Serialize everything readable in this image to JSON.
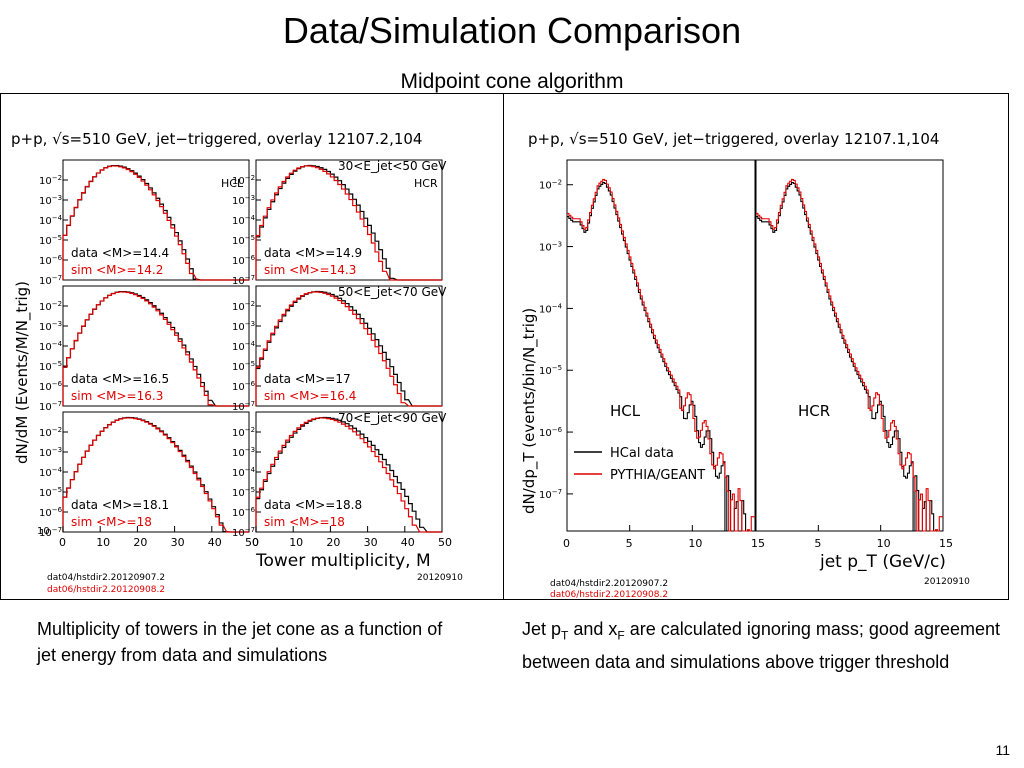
{
  "slide": {
    "title": "Data/Simulation Comparison",
    "subtitle": "Midpoint cone algorithm",
    "caption_left": "Multiplicity of towers in the jet cone as a function of jet energy from data and simulations",
    "caption_right_parts": [
      "Jet p",
      "T",
      " and x",
      "F",
      " are calculated ignoring mass; good agreement between data and simulations above trigger threshold"
    ],
    "page_number": "11"
  },
  "colors": {
    "data": "#000000",
    "sim": "#e00000"
  },
  "chart_data": [
    {
      "type": "line",
      "title": "p+p, √s=510 GeV, jet−triggered, overlay 12107.2,104",
      "xlabel": "Tower multiplicity, M",
      "ylabel": "dN/dM (Events/M/N_trig)",
      "xlim": [
        0,
        50
      ],
      "yscale": "log",
      "ylim_exponents": [
        -7,
        -1
      ],
      "x_ticks": [
        "0",
        "10",
        "20",
        "30",
        "40",
        "50"
      ],
      "y_ticks": [
        "10−2",
        "10−3",
        "10−4",
        "10−5",
        "10−6",
        "10−7"
      ],
      "bottom_tick": "10",
      "series_names": [
        "data",
        "sim"
      ],
      "subplots": [
        {
          "column": "HCL",
          "row_label": "",
          "data_mean": "data <M>=14.4",
          "sim_mean": "sim <M>=14.2",
          "mean_data": 14.4,
          "mean_sim": 14.2
        },
        {
          "column": "HCR",
          "row_label": "30<E_jet<50 GeV",
          "data_mean": "data <M>=14.9",
          "sim_mean": "sim <M>=14.3",
          "mean_data": 14.9,
          "mean_sim": 14.3
        },
        {
          "column": "",
          "row_label": "",
          "data_mean": "data <M>=16.5",
          "sim_mean": "sim <M>=16.3",
          "mean_data": 16.5,
          "mean_sim": 16.3
        },
        {
          "column": "",
          "row_label": "50<E_jet<70 GeV",
          "data_mean": "data <M>=17",
          "sim_mean": "sim <M>=16.4",
          "mean_data": 17,
          "mean_sim": 16.4
        },
        {
          "column": "",
          "row_label": "",
          "data_mean": "data <M>=18.1",
          "sim_mean": "sim <M>=18",
          "mean_data": 18.1,
          "mean_sim": 18
        },
        {
          "column": "",
          "row_label": "70<E_jet<90 GeV",
          "data_mean": "data <M>=18.8",
          "sim_mean": "sim <M>=18",
          "mean_data": 18.8,
          "mean_sim": 18
        }
      ],
      "footer": {
        "file_data": "dat04/hstdir2.20120907.2",
        "file_sim": "dat06/hstdir2.20120908.2",
        "date": "20120910"
      }
    },
    {
      "type": "line",
      "title": "p+p, √s=510 GeV, jet−triggered, overlay 12107.1,104",
      "xlabel": "jet p_T (GeV/c)",
      "ylabel": "dN/dp_T (events/bin/N_trig)",
      "xlim": [
        0,
        15
      ],
      "yscale": "log",
      "ylim_exponents": [
        -7.6,
        -1.6
      ],
      "x_ticks": [
        "0",
        "5",
        "10",
        "15"
      ],
      "y_ticks": [
        "10−2",
        "10−3",
        "10−4",
        "10−5",
        "10−6",
        "10−7"
      ],
      "panels": [
        "HCL",
        "HCR"
      ],
      "legend": [
        {
          "label": "HCal data",
          "color": "#000000"
        },
        {
          "label": "PYTHIA/GEANT",
          "color": "#e00000"
        }
      ],
      "approx_curve": {
        "x": [
          0,
          0.5,
          1,
          1.5,
          2,
          2.5,
          3,
          3.5,
          4,
          5,
          6,
          7,
          8,
          9,
          10,
          11,
          12,
          13,
          14,
          15
        ],
        "log10_y": [
          -2.5,
          -2.6,
          -2.6,
          -2.8,
          -2.4,
          -2.05,
          -1.95,
          -2.15,
          -2.5,
          -3.2,
          -3.9,
          -4.5,
          -5.0,
          -5.4,
          -5.75,
          -6.1,
          -6.5,
          -6.9,
          -7.3,
          -7.7
        ]
      },
      "footer": {
        "file_data": "dat04/hstdir2.20120907.2",
        "file_sim": "dat06/hstdir2.20120908.2",
        "date": "20120910"
      }
    }
  ]
}
